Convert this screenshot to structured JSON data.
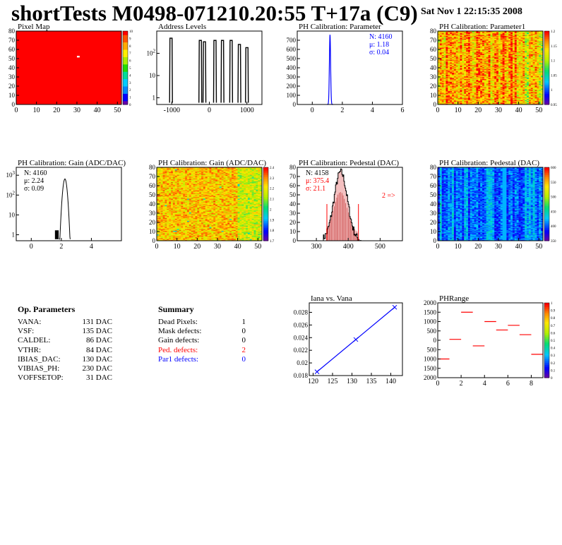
{
  "header": {
    "title": "shortTests M0498-071210.20:55 T+17a (C9)",
    "date": "Sat Nov  1 22:15:35 2008"
  },
  "colors": {
    "red": "#ff0000",
    "blue": "#0000ff",
    "black": "#000000"
  },
  "panels": {
    "pixel_map": {
      "title": "Pixel Map"
    },
    "address_levels": {
      "title": "Address Levels"
    },
    "ph_param": {
      "title": "PH Calibration: Parameter",
      "stats": [
        "N: 4160",
        "μ: 1.18",
        "σ: 0.04"
      ]
    },
    "ph_param1": {
      "title": "PH Calibration: Parameter1"
    },
    "gain_hist": {
      "title": "PH Calibration: Gain (ADC/DAC)",
      "stats": [
        "N: 4160",
        "μ: 2.24",
        "σ: 0.09"
      ]
    },
    "gain_map": {
      "title": "PH Calibration: Gain (ADC/DAC)"
    },
    "ped_hist": {
      "title": "PH Calibration: Pedestal (DAC)",
      "stats": [
        "N: 4158",
        "μ: 375.4",
        "σ: 21.1"
      ],
      "overflow": "2 =>"
    },
    "ped_map": {
      "title": "PH Calibration: Pedestal (DAC)"
    },
    "iana": {
      "title": "Iana vs. Vana"
    },
    "phrange": {
      "title": "PHRange"
    }
  },
  "op_params": {
    "heading": "Op. Parameters",
    "rows": [
      {
        "k": "VANA:",
        "v": "131 DAC"
      },
      {
        "k": "VSF:",
        "v": "135 DAC"
      },
      {
        "k": "CALDEL:",
        "v": "86 DAC"
      },
      {
        "k": "VTHR:",
        "v": "84 DAC"
      },
      {
        "k": "IBIAS_DAC:",
        "v": "130 DAC"
      },
      {
        "k": "VIBIAS_PH:",
        "v": "230 DAC"
      },
      {
        "k": "VOFFSETOP:",
        "v": "31 DAC"
      }
    ]
  },
  "summary": {
    "heading": "Summary",
    "rows": [
      {
        "k": "Dead Pixels:",
        "v": "1",
        "color": "#000000"
      },
      {
        "k": "Mask defects:",
        "v": "0",
        "color": "#000000"
      },
      {
        "k": "Gain defects:",
        "v": "0",
        "color": "#000000"
      },
      {
        "k": "Ped. defects:",
        "v": "2",
        "color": "#ff0000"
      },
      {
        "k": "Par1 defects:",
        "v": "0",
        "color": "#0000ff"
      }
    ]
  },
  "chart_data": [
    {
      "id": "pixel_map",
      "type": "heatmap",
      "title": "Pixel Map",
      "xlim": [
        0,
        52
      ],
      "ylim": [
        0,
        80
      ],
      "xticks": [
        0,
        10,
        20,
        30,
        40,
        50
      ],
      "yticks": [
        0,
        10,
        20,
        30,
        40,
        50,
        60,
        70,
        80
      ],
      "zticks": [
        "0",
        "1",
        "2",
        "3",
        "4",
        "5",
        "6",
        "7",
        "8",
        "9",
        "10"
      ],
      "fill": "#ff0000",
      "dead_pixel": [
        30,
        52
      ]
    },
    {
      "id": "address_levels",
      "type": "bar",
      "title": "Address Levels",
      "log_y": true,
      "xlim": [
        -1400,
        1400
      ],
      "xticks": [
        "-1000",
        "0",
        "1000"
      ],
      "yticks": [
        {
          "v": 1,
          "label": "1"
        },
        {
          "v": 10,
          "label": "10"
        },
        {
          "v": 100,
          "label": "10^2"
        }
      ],
      "peaks": [
        {
          "x": -1020,
          "h": 480
        },
        {
          "x": -240,
          "h": 380
        },
        {
          "x": -130,
          "h": 330
        },
        {
          "x": 150,
          "h": 380
        },
        {
          "x": 350,
          "h": 380
        },
        {
          "x": 580,
          "h": 380
        },
        {
          "x": 800,
          "h": 250
        },
        {
          "x": 1000,
          "h": 180
        }
      ]
    },
    {
      "id": "ph_param",
      "type": "bar",
      "title": "PH Calibration: Parameter",
      "xlim": [
        -1,
        6
      ],
      "ylim": [
        0,
        800
      ],
      "xticks": [
        0,
        2,
        4,
        6
      ],
      "yticks": [
        0,
        100,
        200,
        300,
        400,
        500,
        600,
        700
      ],
      "mean": 1.18,
      "sigma": 0.04,
      "peak": 760,
      "color": "#0000ff"
    },
    {
      "id": "ph_param1",
      "type": "heatmap",
      "title": "PH Calibration: Parameter1",
      "xlim": [
        0,
        52
      ],
      "ylim": [
        0,
        80
      ],
      "xticks": [
        0,
        10,
        20,
        30,
        40,
        50
      ],
      "yticks": [
        0,
        10,
        20,
        30,
        40,
        50,
        60,
        70,
        80
      ],
      "zticks": [
        "0.95",
        "1",
        "1.05",
        "1.1",
        "1.15",
        "1.2"
      ]
    },
    {
      "id": "gain_hist",
      "type": "bar",
      "title": "PH Calibration: Gain (ADC/DAC)",
      "log_y": true,
      "xlim": [
        -1,
        6
      ],
      "xticks": [
        0,
        2,
        4
      ],
      "yticks": [
        {
          "v": 1,
          "label": "1"
        },
        {
          "v": 10,
          "label": "10"
        },
        {
          "v": 100,
          "label": "10^2"
        },
        {
          "v": 1000,
          "label": "10^3"
        }
      ],
      "mean": 2.24,
      "sigma": 0.09,
      "peak": 650
    },
    {
      "id": "gain_map",
      "type": "heatmap",
      "title": "PH Calibration: Gain (ADC/DAC)",
      "xlim": [
        0,
        52
      ],
      "ylim": [
        0,
        80
      ],
      "xticks": [
        0,
        10,
        20,
        30,
        40,
        50
      ],
      "yticks": [
        0,
        10,
        20,
        30,
        40,
        50,
        60,
        70,
        80
      ],
      "zticks": [
        "1.7",
        "1.8",
        "1.9",
        "2",
        "2.1",
        "2.2",
        "2.3",
        "2.4"
      ]
    },
    {
      "id": "ped_hist",
      "type": "bar",
      "title": "PH Calibration: Pedestal (DAC)",
      "xlim": [
        240,
        570
      ],
      "ylim": [
        0,
        80
      ],
      "xticks": [
        300,
        400,
        500
      ],
      "yticks": [
        0,
        10,
        20,
        30,
        40,
        50,
        60,
        70,
        80
      ],
      "mean": 375.4,
      "sigma": 21.1,
      "peak": 75,
      "cut_lines": [
        333,
        432
      ],
      "cut_height": 40
    },
    {
      "id": "ped_map",
      "type": "heatmap",
      "title": "PH Calibration: Pedestal (DAC)",
      "xlim": [
        0,
        52
      ],
      "ylim": [
        0,
        80
      ],
      "xticks": [
        0,
        10,
        20,
        30,
        40,
        50
      ],
      "yticks": [
        0,
        10,
        20,
        30,
        40,
        50,
        60,
        70,
        80
      ],
      "zticks": [
        "350",
        "400",
        "450",
        "500",
        "550",
        "600"
      ]
    },
    {
      "id": "iana",
      "type": "line",
      "title": "Iana vs. Vana",
      "xlim": [
        119,
        143
      ],
      "ylim": [
        0.018,
        0.0295
      ],
      "xticks": [
        120,
        125,
        130,
        135,
        140
      ],
      "yticks": [
        0.018,
        0.02,
        0.022,
        0.024,
        0.026,
        0.028
      ],
      "x": [
        121,
        131,
        141
      ],
      "y": [
        0.0186,
        0.0237,
        0.0288
      ],
      "color": "#0000ff"
    },
    {
      "id": "phrange",
      "type": "scatter",
      "title": "PHRange",
      "xlim": [
        0,
        9
      ],
      "ylim": [
        -2000,
        2000
      ],
      "xticks": [
        0,
        2,
        4,
        6,
        8
      ],
      "yticks": [
        -2000,
        -1500,
        -1000,
        -500,
        0,
        500,
        1000,
        1500,
        2000
      ],
      "ytick_labels": [
        "2000",
        "1500",
        "1000",
        "500",
        "0",
        "500",
        "1000",
        "1500",
        "2000"
      ],
      "x": [
        0.5,
        1.5,
        2.5,
        3.5,
        4.5,
        5.5,
        6.5,
        7.5,
        8.5
      ],
      "y": [
        -1000,
        50,
        1500,
        -300,
        1000,
        550,
        800,
        300,
        -750
      ],
      "zticks": [
        "0",
        "0.1",
        "0.2",
        "0.3",
        "0.4",
        "0.5",
        "0.6",
        "0.7",
        "0.8",
        "0.9",
        "1"
      ],
      "color": "#ff0000"
    }
  ]
}
